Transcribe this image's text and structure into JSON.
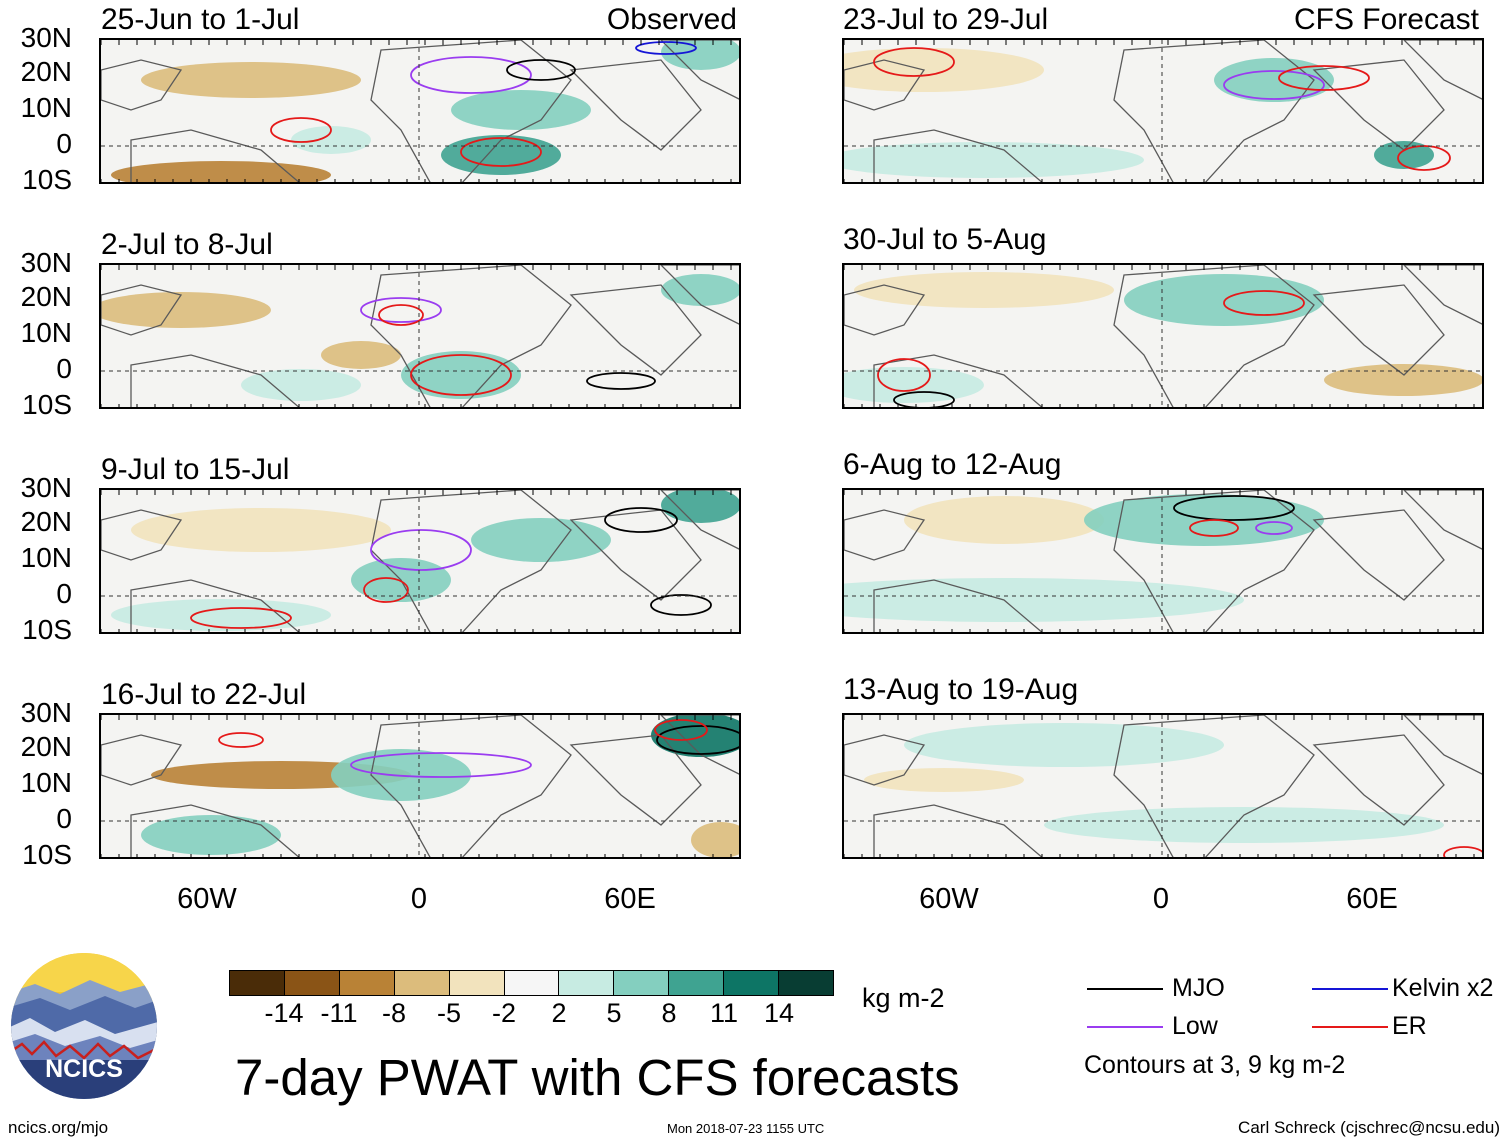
{
  "panels": {
    "left": [
      {
        "title": "25-Jun to 1-Jul",
        "tag": "Observed"
      },
      {
        "title": "2-Jul to 8-Jul"
      },
      {
        "title": "9-Jul to 15-Jul"
      },
      {
        "title": "16-Jul to 22-Jul"
      }
    ],
    "right": [
      {
        "title": "23-Jul to 29-Jul",
        "tag": "CFS Forecast"
      },
      {
        "title": "30-Jul to 5-Aug"
      },
      {
        "title": "6-Aug to 12-Aug"
      },
      {
        "title": "13-Aug to 19-Aug"
      }
    ]
  },
  "axes": {
    "lat_labels": [
      "30N",
      "20N",
      "10N",
      "0",
      "10S"
    ],
    "lon_labels": [
      "60W",
      "0",
      "60E"
    ]
  },
  "colorbar": {
    "ticks": [
      "-14",
      "-11",
      "-8",
      "-5",
      "-2",
      "2",
      "5",
      "8",
      "11",
      "14"
    ],
    "units": "kg m-2",
    "colors": [
      "#4a2c08",
      "#8a5416",
      "#b98236",
      "#dcbc7c",
      "#f2e3bd",
      "#f6f6f6",
      "#c7ebe2",
      "#84cfbf",
      "#3fa391",
      "#0d7565",
      "#083d33"
    ]
  },
  "legend": {
    "items": [
      {
        "label": "MJO",
        "color": "#000000"
      },
      {
        "label": "Kelvin x2",
        "color": "#1515d6"
      },
      {
        "label": "Low",
        "color": "#9a3cf0"
      },
      {
        "label": "ER",
        "color": "#e51919"
      }
    ],
    "note": "Contours at 3, 9 kg m-2"
  },
  "main_title": "7-day PWAT with CFS forecasts",
  "logo": {
    "text": "NCICS"
  },
  "footer": {
    "url": "ncics.org/mjo",
    "timestamp": "Mon 2018-07-23 1155 UTC",
    "author": "Carl Schreck (cjschrec@ncsu.edu)"
  }
}
